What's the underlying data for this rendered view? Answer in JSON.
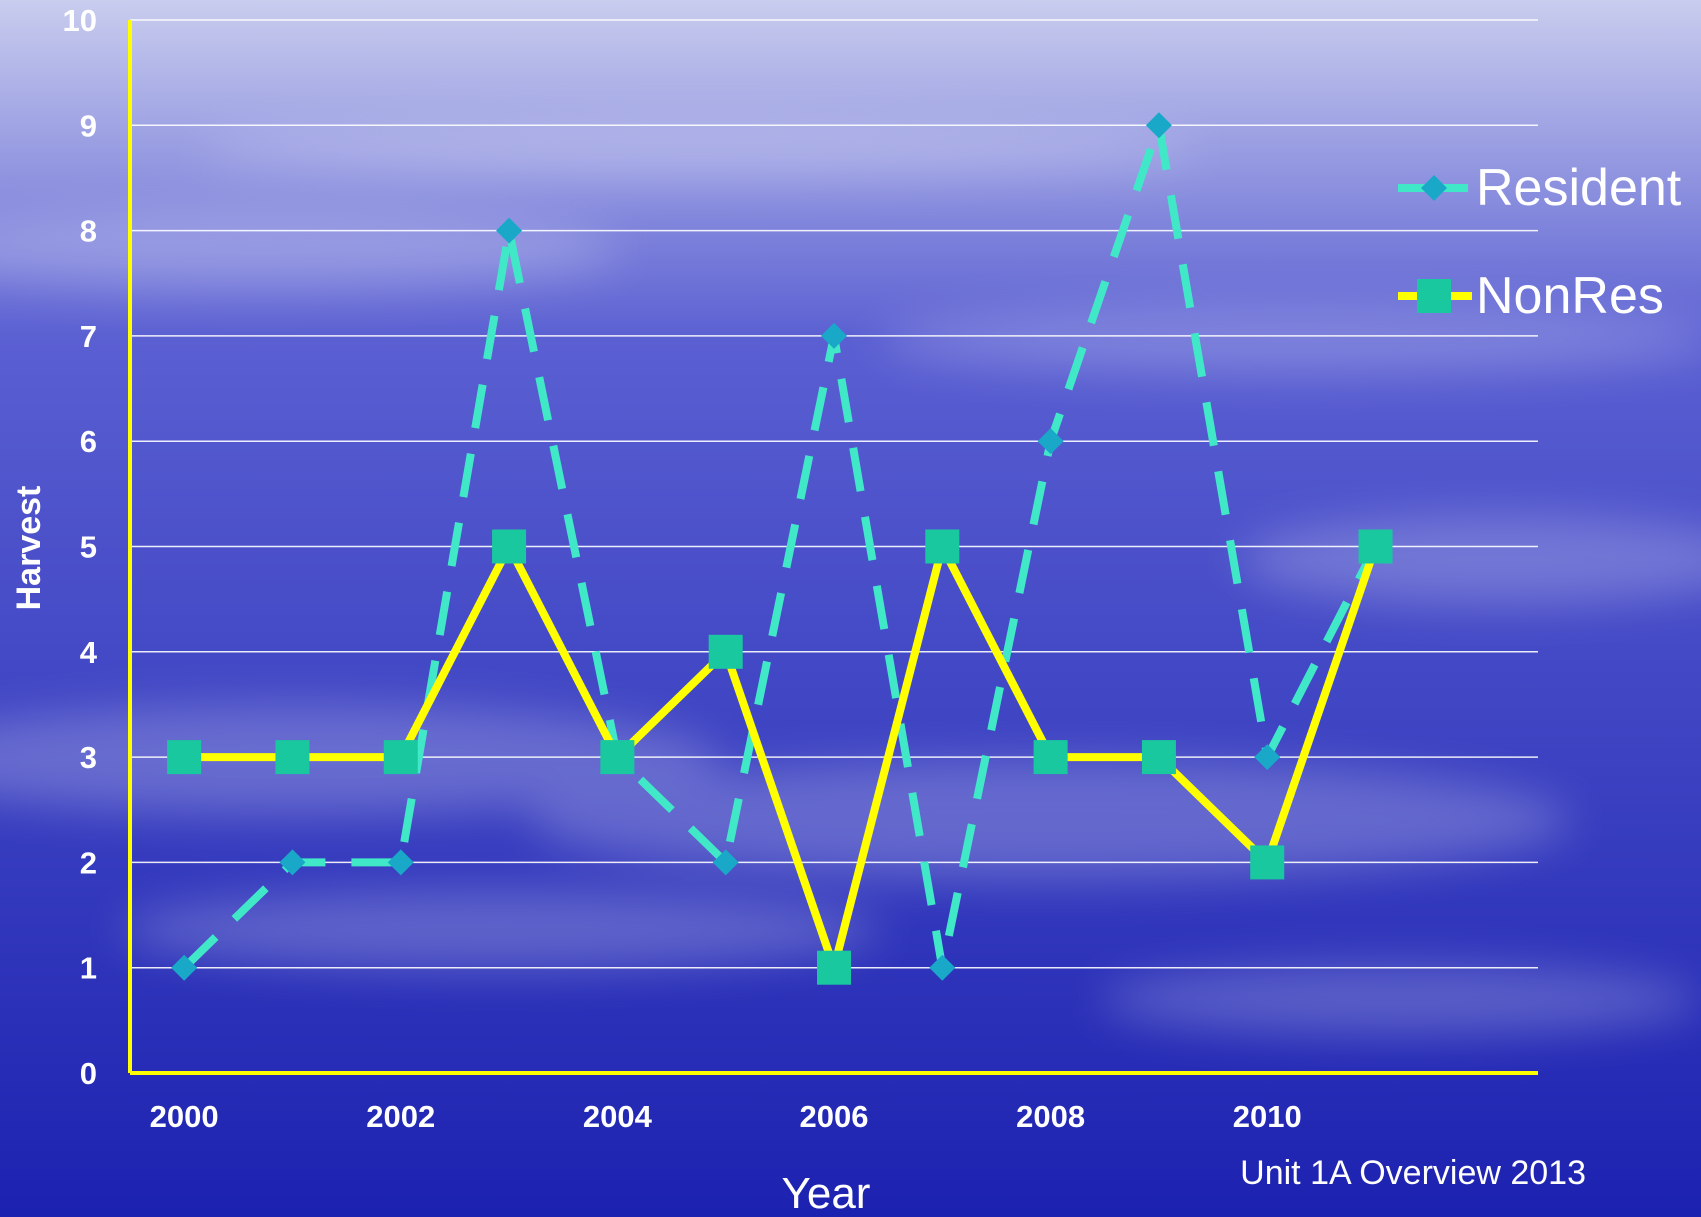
{
  "colors": {
    "sky_top": "#c9cdee",
    "sky_mid": "#5a5fd2",
    "sky_bottom": "#1c22b0",
    "axis": "#ffff00",
    "gridline": "#ffffff",
    "resident_line": "#40e8c8",
    "resident_marker": "#1aa8c8",
    "nonres_line": "#ffff00",
    "nonres_marker": "#1ac8a0"
  },
  "footer": {
    "credit": "Unit 1A Overview 2013"
  },
  "chart_data": {
    "type": "line",
    "title": "",
    "xlabel": "Year",
    "ylabel": "Harvest",
    "x": [
      2000,
      2001,
      2002,
      2003,
      2004,
      2005,
      2006,
      2007,
      2008,
      2009,
      2010,
      2011
    ],
    "x_tick_labels": [
      "2000",
      "2002",
      "2004",
      "2006",
      "2008",
      "2010"
    ],
    "y_tick_labels": [
      "0",
      "1",
      "2",
      "3",
      "4",
      "5",
      "6",
      "7",
      "8",
      "9",
      "10"
    ],
    "ylim": [
      0,
      10
    ],
    "xlim": [
      1999.5,
      2012.5
    ],
    "grid": true,
    "legend_position": "right",
    "series": [
      {
        "name": "Resident",
        "style": "dashed",
        "marker": "diamond",
        "values": [
          1,
          2,
          2,
          8,
          3,
          2,
          7,
          1,
          6,
          9,
          3,
          5
        ]
      },
      {
        "name": "NonRes",
        "style": "solid",
        "marker": "square",
        "values": [
          3,
          3,
          3,
          5,
          3,
          4,
          1,
          5,
          3,
          3,
          2,
          5
        ]
      }
    ]
  }
}
